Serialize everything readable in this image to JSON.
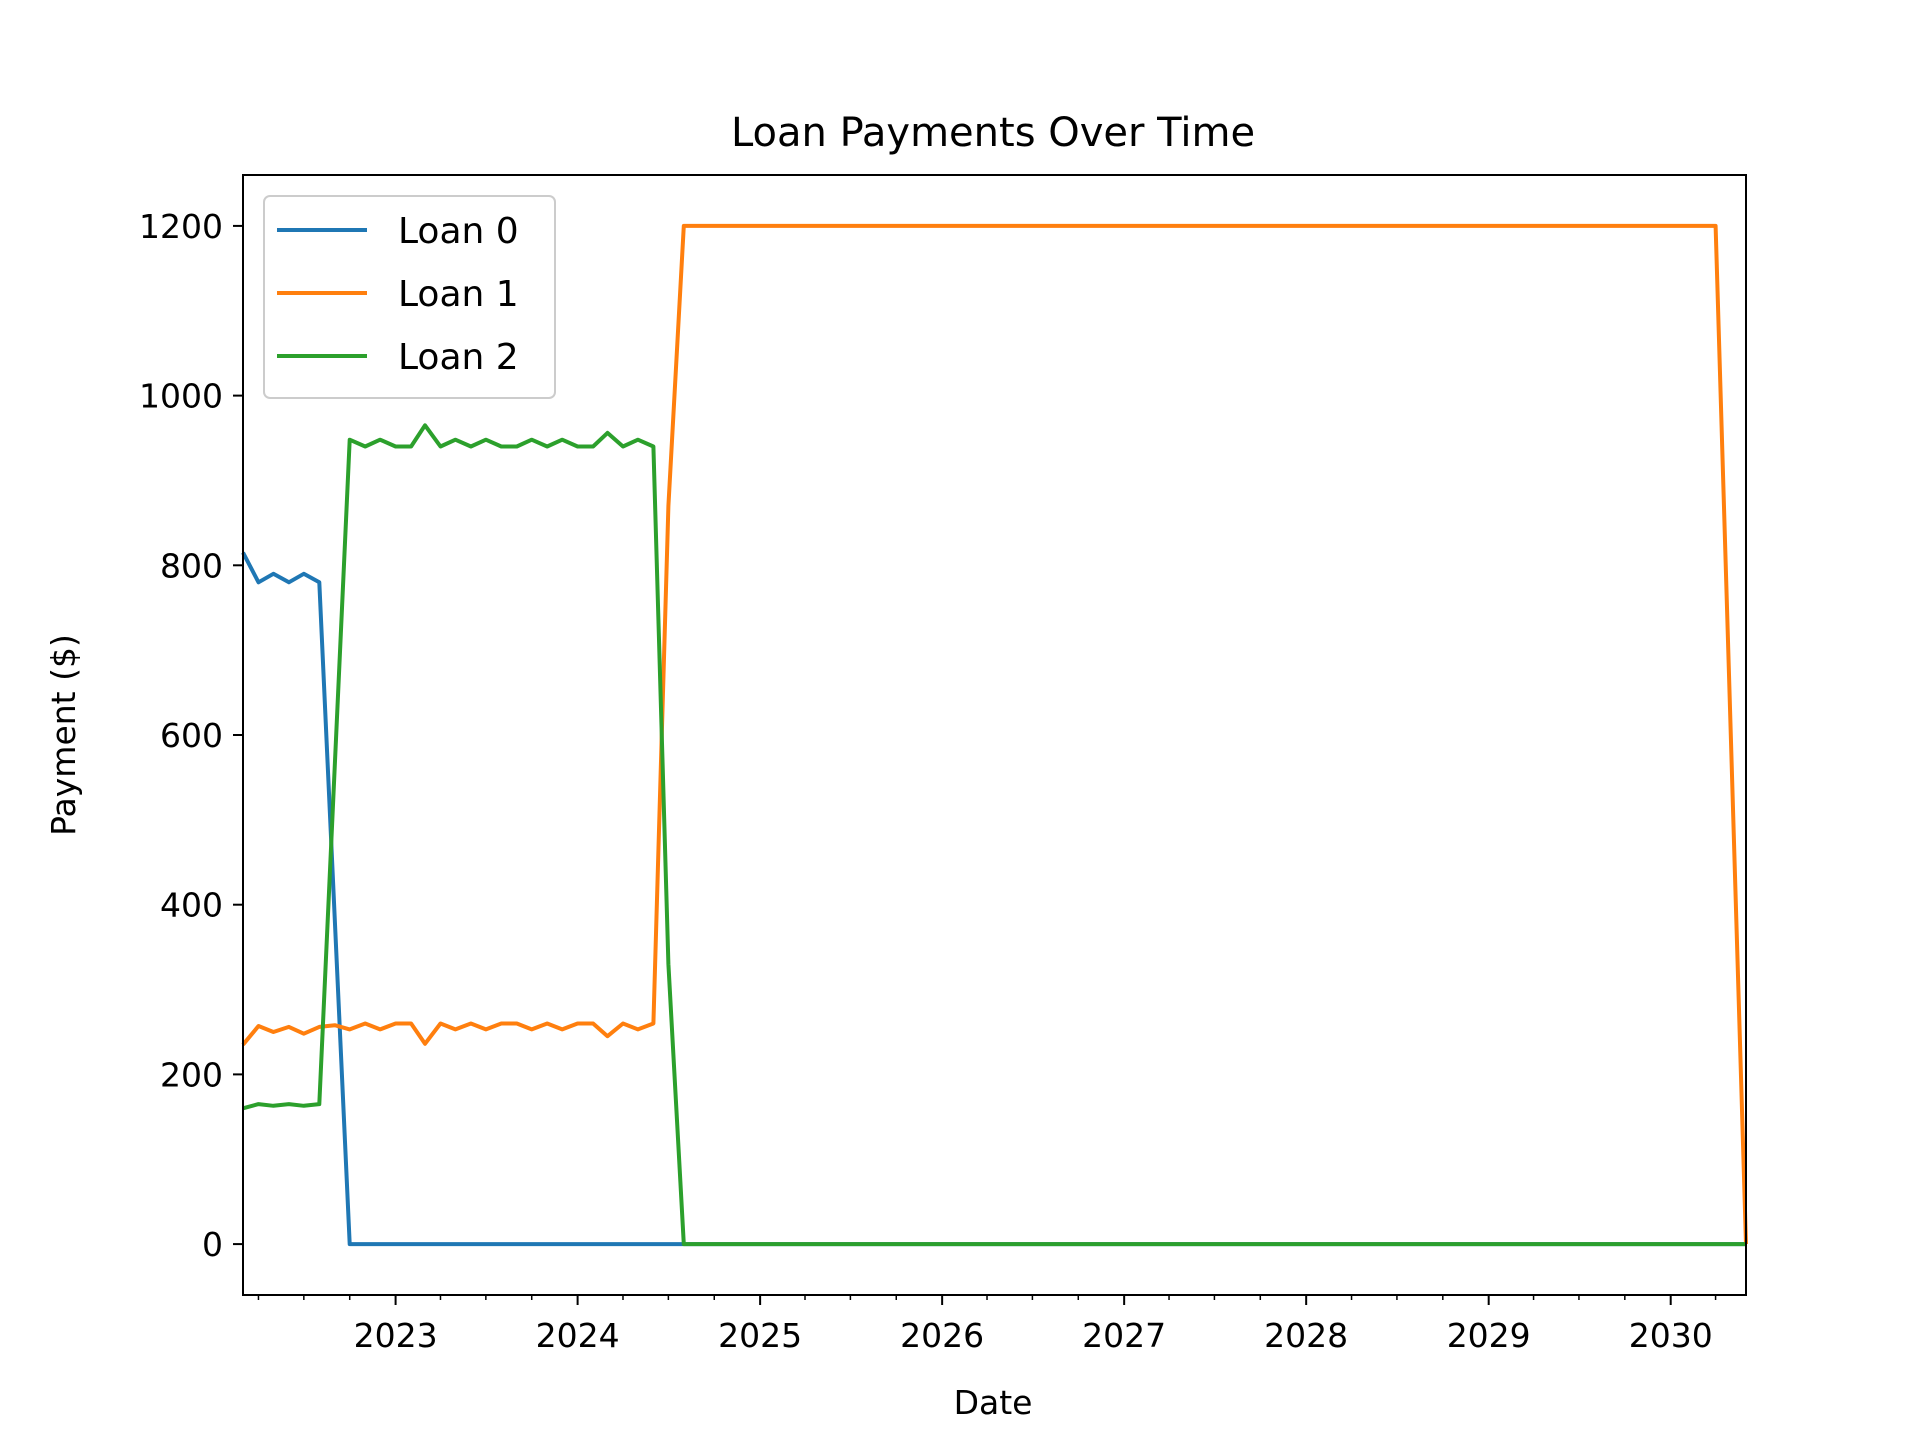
{
  "chart_data": {
    "type": "line",
    "title": "Loan Payments Over Time",
    "xlabel": "Date",
    "ylabel": "Payment ($)",
    "xlim": [
      "2022-03-01",
      "2030-06-01"
    ],
    "ylim": [
      -60,
      1260
    ],
    "x_ticks": [
      "2023",
      "2024",
      "2025",
      "2026",
      "2027",
      "2028",
      "2029",
      "2030"
    ],
    "y_ticks": [
      0,
      200,
      400,
      600,
      800,
      1000,
      1200
    ],
    "grid": false,
    "legend": "top-left",
    "series": [
      {
        "name": "Loan 0",
        "color": "#1f77b4",
        "points": [
          [
            "2022-03-01",
            815
          ],
          [
            "2022-04-01",
            780
          ],
          [
            "2022-05-01",
            790
          ],
          [
            "2022-06-01",
            780
          ],
          [
            "2022-07-01",
            790
          ],
          [
            "2022-08-01",
            780
          ],
          [
            "2022-10-01",
            0
          ],
          [
            "2030-06-01",
            0
          ]
        ]
      },
      {
        "name": "Loan 1",
        "color": "#ff7f0e",
        "points": [
          [
            "2022-03-01",
            235
          ],
          [
            "2022-04-01",
            257
          ],
          [
            "2022-05-01",
            250
          ],
          [
            "2022-06-01",
            256
          ],
          [
            "2022-07-01",
            248
          ],
          [
            "2022-08-01",
            256
          ],
          [
            "2022-09-01",
            258
          ],
          [
            "2022-10-01",
            253
          ],
          [
            "2022-11-01",
            260
          ],
          [
            "2022-12-01",
            253
          ],
          [
            "2023-01-01",
            260
          ],
          [
            "2023-02-01",
            260
          ],
          [
            "2023-03-01",
            236
          ],
          [
            "2023-04-01",
            260
          ],
          [
            "2023-05-01",
            253
          ],
          [
            "2023-06-01",
            260
          ],
          [
            "2023-07-01",
            253
          ],
          [
            "2023-08-01",
            260
          ],
          [
            "2023-09-01",
            260
          ],
          [
            "2023-10-01",
            253
          ],
          [
            "2023-11-01",
            260
          ],
          [
            "2023-12-01",
            253
          ],
          [
            "2024-01-01",
            260
          ],
          [
            "2024-02-01",
            260
          ],
          [
            "2024-03-01",
            245
          ],
          [
            "2024-04-01",
            260
          ],
          [
            "2024-05-01",
            253
          ],
          [
            "2024-06-01",
            260
          ],
          [
            "2024-07-01",
            870
          ],
          [
            "2024-08-01",
            1200
          ],
          [
            "2030-04-01",
            1200
          ],
          [
            "2030-06-01",
            0
          ]
        ]
      },
      {
        "name": "Loan 2",
        "color": "#2ca02c",
        "points": [
          [
            "2022-03-01",
            160
          ],
          [
            "2022-04-01",
            165
          ],
          [
            "2022-05-01",
            163
          ],
          [
            "2022-06-01",
            165
          ],
          [
            "2022-07-01",
            163
          ],
          [
            "2022-08-01",
            165
          ],
          [
            "2022-10-01",
            948
          ],
          [
            "2022-11-01",
            940
          ],
          [
            "2022-12-01",
            948
          ],
          [
            "2023-01-01",
            940
          ],
          [
            "2023-02-01",
            940
          ],
          [
            "2023-03-01",
            965
          ],
          [
            "2023-04-01",
            940
          ],
          [
            "2023-05-01",
            948
          ],
          [
            "2023-06-01",
            940
          ],
          [
            "2023-07-01",
            948
          ],
          [
            "2023-08-01",
            940
          ],
          [
            "2023-09-01",
            940
          ],
          [
            "2023-10-01",
            948
          ],
          [
            "2023-11-01",
            940
          ],
          [
            "2023-12-01",
            948
          ],
          [
            "2024-01-01",
            940
          ],
          [
            "2024-02-01",
            940
          ],
          [
            "2024-03-01",
            956
          ],
          [
            "2024-04-01",
            940
          ],
          [
            "2024-05-01",
            948
          ],
          [
            "2024-06-01",
            940
          ],
          [
            "2024-07-01",
            330
          ],
          [
            "2024-08-01",
            0
          ],
          [
            "2030-06-01",
            0
          ]
        ]
      }
    ]
  }
}
